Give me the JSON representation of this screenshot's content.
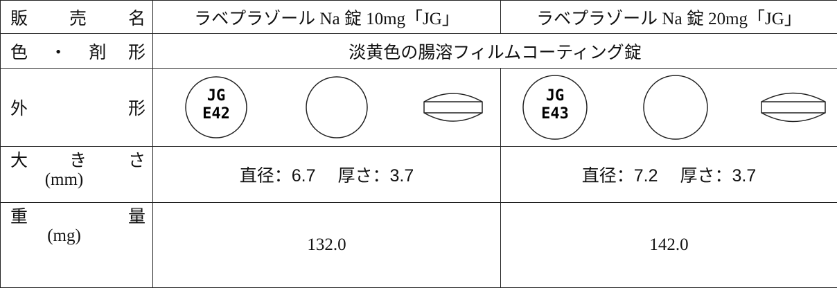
{
  "table": {
    "header": {
      "label": "販売名",
      "products": [
        "ラベプラゾール Na 錠 10mg「JG」",
        "ラベプラゾール Na 錠 20mg「JG」"
      ]
    },
    "color_form": {
      "label": "色・剤形",
      "value": "淡黄色の腸溶フィルムコーティング錠"
    },
    "shape": {
      "label": "外形",
      "imprints": [
        [
          "JG",
          "E42"
        ],
        [
          "JG",
          "E43"
        ]
      ]
    },
    "size": {
      "label": "大きさ",
      "unit": "(mm)",
      "values": [
        "直径：6.7　 厚さ：3.7",
        "直径：7.2　 厚さ：3.7"
      ]
    },
    "weight": {
      "label": "重量",
      "unit": "(mg)",
      "values": [
        "132.0",
        "142.0"
      ]
    }
  }
}
